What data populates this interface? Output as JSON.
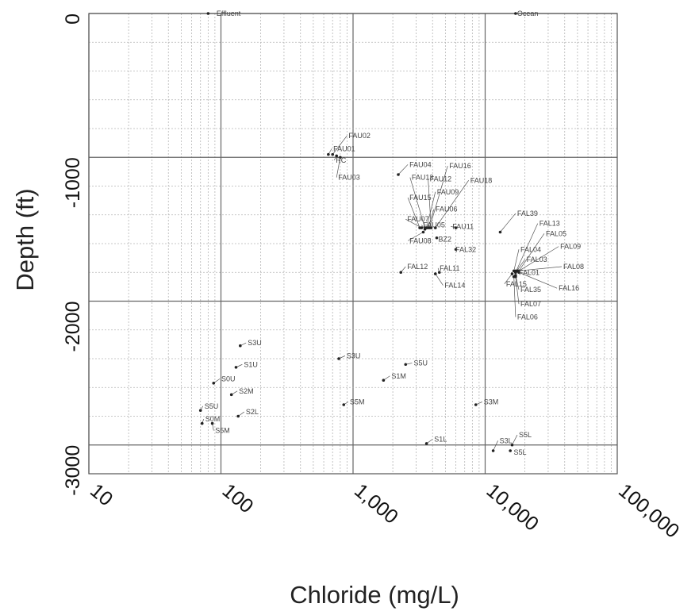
{
  "chart_data": {
    "type": "scatter",
    "title": "",
    "xlabel": "Chloride (mg/L)",
    "ylabel": "Depth (ft)",
    "x_scale": "log",
    "xlim": [
      10,
      100000
    ],
    "ylim": [
      -3200,
      0
    ],
    "x_ticks": [
      {
        "value": 10,
        "label": "10"
      },
      {
        "value": 100,
        "label": "100"
      },
      {
        "value": 1000,
        "label": "1,000"
      },
      {
        "value": 10000,
        "label": "10,000"
      },
      {
        "value": 100000,
        "label": "100,000"
      }
    ],
    "y_ticks": [
      {
        "value": 0,
        "label": "0"
      },
      {
        "value": -1000,
        "label": "-1000"
      },
      {
        "value": -2000,
        "label": "-2000"
      },
      {
        "value": -3000,
        "label": "-3000"
      }
    ],
    "grid": true,
    "points": [
      {
        "label": "Effluent",
        "x": 80,
        "y": 0,
        "lx": 90,
        "ly": 0
      },
      {
        "label": "Ocean",
        "x": 17000,
        "y": 0,
        "lx": 17000,
        "ly": 0
      },
      {
        "label": "FAU02",
        "x": 700,
        "y": -980,
        "lx": 900,
        "ly": -850
      },
      {
        "label": "FAU01",
        "x": 650,
        "y": -980,
        "lx": 690,
        "ly": -940
      },
      {
        "label": "RC",
        "x": 750,
        "y": -990,
        "lx": 720,
        "ly": -1020
      },
      {
        "label": "FAU03",
        "x": 800,
        "y": -1000,
        "lx": 750,
        "ly": -1140
      },
      {
        "label": "FAU04",
        "x": 2200,
        "y": -1120,
        "lx": 2600,
        "ly": -1050
      },
      {
        "label": "FAU16",
        "x": 3800,
        "y": -1490,
        "lx": 5200,
        "ly": -1060
      },
      {
        "label": "FAU13",
        "x": 3500,
        "y": -1490,
        "lx": 2700,
        "ly": -1140
      },
      {
        "label": "FAU12",
        "x": 3900,
        "y": -1490,
        "lx": 3700,
        "ly": -1150
      },
      {
        "label": "FAU18",
        "x": 4200,
        "y": -1490,
        "lx": 7500,
        "ly": -1160
      },
      {
        "label": "FAU15",
        "x": 3200,
        "y": -1490,
        "lx": 2600,
        "ly": -1280
      },
      {
        "label": "FAU09",
        "x": 3600,
        "y": -1490,
        "lx": 4200,
        "ly": -1240
      },
      {
        "label": "FAU06",
        "x": 3700,
        "y": -1490,
        "lx": 4100,
        "ly": -1360
      },
      {
        "label": "FAU07",
        "x": 3300,
        "y": -1490,
        "lx": 2500,
        "ly": -1430
      },
      {
        "label": "FAU05",
        "x": 3500,
        "y": -1500,
        "lx": 3300,
        "ly": -1470
      },
      {
        "label": "FAU08",
        "x": 3400,
        "y": -1520,
        "lx": 2600,
        "ly": -1580
      },
      {
        "label": "FAU11",
        "x": 6000,
        "y": -1490,
        "lx": 5500,
        "ly": -1480
      },
      {
        "label": "BZ2",
        "x": 4300,
        "y": -1560,
        "lx": 4300,
        "ly": -1570
      },
      {
        "label": "FAL32",
        "x": 6000,
        "y": -1640,
        "lx": 5800,
        "ly": -1640
      },
      {
        "label": "FAL12",
        "x": 2300,
        "y": -1800,
        "lx": 2500,
        "ly": -1760
      },
      {
        "label": "FAL11",
        "x": 4500,
        "y": -1800,
        "lx": 4400,
        "ly": -1770
      },
      {
        "label": "FAL14",
        "x": 4200,
        "y": -1810,
        "lx": 4800,
        "ly": -1890
      },
      {
        "label": "FAL39",
        "x": 13000,
        "y": -1520,
        "lx": 17000,
        "ly": -1390
      },
      {
        "label": "FAL13",
        "x": 17000,
        "y": -1800,
        "lx": 25000,
        "ly": -1460
      },
      {
        "label": "FAL05",
        "x": 18000,
        "y": -1790,
        "lx": 28000,
        "ly": -1530
      },
      {
        "label": "FAL09",
        "x": 18000,
        "y": -1790,
        "lx": 36000,
        "ly": -1620
      },
      {
        "label": "FAL04",
        "x": 16500,
        "y": -1790,
        "lx": 18000,
        "ly": -1640
      },
      {
        "label": "FAL03",
        "x": 17000,
        "y": -1800,
        "lx": 20000,
        "ly": -1710
      },
      {
        "label": "FAL08",
        "x": 17500,
        "y": -1790,
        "lx": 38000,
        "ly": -1760
      },
      {
        "label": "FAL01",
        "x": 17000,
        "y": -1790,
        "lx": 17500,
        "ly": -1800
      },
      {
        "label": "FAL15",
        "x": 16000,
        "y": -1810,
        "lx": 14000,
        "ly": -1880
      },
      {
        "label": "FAL35",
        "x": 17000,
        "y": -1820,
        "lx": 18000,
        "ly": -1920
      },
      {
        "label": "FAL16",
        "x": 18000,
        "y": -1800,
        "lx": 35000,
        "ly": -1910
      },
      {
        "label": "FAL07",
        "x": 17000,
        "y": -1830,
        "lx": 18000,
        "ly": -2020
      },
      {
        "label": "FAL06",
        "x": 16500,
        "y": -1830,
        "lx": 17000,
        "ly": -2110
      },
      {
        "label": "S3U",
        "x": 140,
        "y": -2310,
        "lx": 155,
        "ly": -2290
      },
      {
        "label": "S1U",
        "x": 130,
        "y": -2460,
        "lx": 145,
        "ly": -2440
      },
      {
        "label": "S0U",
        "x": 88,
        "y": -2570,
        "lx": 98,
        "ly": -2540
      },
      {
        "label": "S2M",
        "x": 120,
        "y": -2650,
        "lx": 133,
        "ly": -2625
      },
      {
        "label": "S5U",
        "x": 70,
        "y": -2760,
        "lx": 73,
        "ly": -2730
      },
      {
        "label": "S2L",
        "x": 135,
        "y": -2800,
        "lx": 150,
        "ly": -2770
      },
      {
        "label": "S0M",
        "x": 72,
        "y": -2850,
        "lx": 74,
        "ly": -2820
      },
      {
        "label": "S5M",
        "x": 86,
        "y": -2850,
        "lx": 88,
        "ly": -2900
      },
      {
        "label": "S3U",
        "x": 780,
        "y": -2400,
        "lx": 870,
        "ly": -2380
      },
      {
        "label": "S5U",
        "x": 2500,
        "y": -2440,
        "lx": 2800,
        "ly": -2430
      },
      {
        "label": "S1M",
        "x": 1700,
        "y": -2550,
        "lx": 1900,
        "ly": -2520
      },
      {
        "label": "S5M",
        "x": 850,
        "y": -2720,
        "lx": 920,
        "ly": -2700
      },
      {
        "label": "S3M",
        "x": 8500,
        "y": -2720,
        "lx": 9500,
        "ly": -2700
      },
      {
        "label": "S1L",
        "x": 3600,
        "y": -2990,
        "lx": 4000,
        "ly": -2960
      },
      {
        "label": "S3L",
        "x": 11500,
        "y": -3040,
        "lx": 12500,
        "ly": -2970
      },
      {
        "label": "S5L",
        "x": 15500,
        "y": -3040,
        "lx": 16000,
        "ly": -3050
      },
      {
        "label": "S5L",
        "x": 16000,
        "y": -3000,
        "lx": 17500,
        "ly": -2930
      }
    ]
  }
}
